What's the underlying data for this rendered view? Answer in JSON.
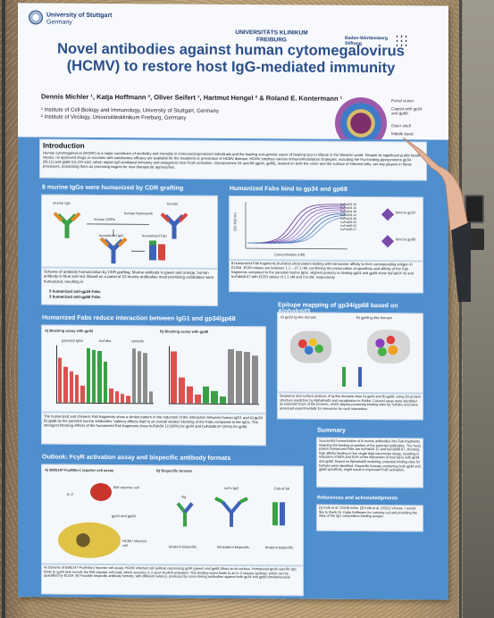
{
  "poster": {
    "logo_left": "University of Stuttgart",
    "logo_left_sub": "Germany",
    "logo_center": "UNIVERSITÄTS KLINIKUM FREIBURG",
    "logo_right": "Baden-Württemberg Stiftung",
    "title_line1": "Novel antibodies against human cytomegalovirus",
    "title_line2": "(HCMV) to restore host IgG-mediated immunity",
    "authors": "Dennis Michler ¹, Katja Hoffmann ², Oliver Seifert ¹, Hartmut Hengel ² & Roland E. Kontermann ¹",
    "affiliation1": "¹ Institute of Cell Biology and Immunology, University of Stuttgart, Germany",
    "affiliation2": "² Institute of Virology, Universitätsklinikum Freiburg, Germany",
    "virus_labels": [
      "Portal vertex",
      "Capsid with gp34 and gp68",
      "Outer shell",
      "Middle band",
      "Inner core"
    ],
    "intro_title": "Introduction",
    "intro_text": "Human cytomegalovirus (HCMV) is a major contributor of morbidity and mortality in immunocompromised individuals and the leading non-genetic cause of hearing loss in infants in the Western world. Despite its significant public health impact, no approved drugs or vaccines with satisfactory efficacy are available for the treatment or prevention of HCMV disease. HCMV employs various immunomodulatory strategies, including the Fcγ-binding glycoproteins gp34 (RL11) and gp68 (UL119-118), which impair IgG-mediated immunity and antagonize host FcγR activation. Glycoproteins 34 and 68 (gp34, gp68), located on both the virion and the surface of infected cells, are key players in these processes, positioning them as promising targets for new therapeutic approaches.",
    "s1_title": "8 murine IgGs were humanized by CDR grafting",
    "s1_labels": [
      "murine IgG",
      "murine CDRs",
      "human framework",
      "humanized IgG",
      "humanized Fab",
      "human"
    ],
    "s1_caption": "Scheme of antibody humanization by CDR grafting. Murine antibody in green and orange, human antibody in blue and red. Based on a panel of 23 murine antibodies most promising candidates were humanized, resulting in",
    "s1_bullet1": "5 humanized anti-gp34 Fabs",
    "s1_bullet2": "3 humanized anti-gp68 Fabs",
    "s2_title": "Humanized Fabs bind to gp34 and gp68",
    "s2_ylabel": "OD 450 nm",
    "s2_xlabel": "Concentration (nM)",
    "s2_legend": [
      "huFab34 09",
      "huFab34 26",
      "huFab34 30",
      "huFab34 42",
      "huFab34 80",
      "huFab68 20",
      "huFab68 55",
      "huFab68 67"
    ],
    "s2_bind1": "bind to gp34",
    "s2_bind2": "bind to gp68",
    "s2_caption": "8 humanized Fab fragments (huFabs) show potent binding with nanomolar affinity to their corresponding antigen in ELISA. EC50 values are between 1.1 – 27.1 nM, confirming the preservation of specificity and affinity of the Fab fragments compared to the parental murine IgGs. Highest potency in binding gp34 and gp68 show huFab34 42 and huFab68 67 with EC50 values of 1.1 nM and 2.8 nM, respectively.",
    "s3_title": "Humanized Fabs reduce interaction between IgG1 and gp34/gp68",
    "s3_a": "A) Blocking assay with gp34",
    "s3_b": "B) Blocking assay with gp68",
    "s3_groups": [
      "parental IgGs",
      "huFabs",
      "controls"
    ],
    "s3_caption": "The humanized and chimeric Fab fragments show a similar pattern in the reduction of the interaction between human IgG1 and A) gp34 B) gp68 as the parental murine antibodies. Valency effects lead to an overall weaker blocking of the Fabs compared to the IgGs. The strongest blocking effects of the humanized Fab fragments show huFab34 12 (80%) for gp34 and huFab68 67 (81%) for gp68.",
    "s4_title": "Epitope mapping of gp34/gp68 based on Alphafold3",
    "s4_a": "A) gp34 Ig-like domain",
    "s4_b": "B) gp68 Ig-like domain",
    "s4_caption": "Sequence and surface analysis of Ig-like domains from A) gp34 and B) gp68, using 3D protein structure prediction by AlphaFold3 and visualization in PyMol. Colored areas were identified as exposed loops of the proteins, which display promising binding sites for huFabs and were assessed experimentally for relevance for such interaction.",
    "s5_title": "Outlook: FcγR activation assay and bispecific antibody formats",
    "s5_a": "A) BW5147-FcγRIIIa-ζ reporter cell assay",
    "s5_b": "B) Bispecific formats",
    "s5_formats": [
      "sIg",
      "scFv-IgG",
      "Fab-sFab"
    ],
    "s5_format_sub": [
      "bivalent bispecific",
      "tetravalent bispecific",
      "bivalent bispecific"
    ],
    "s5_cell_labels": [
      "IL-2",
      "BW reporter cell",
      "gp34 and gp68",
      "HCMV infected cell"
    ],
    "s5_caption": "A) Scheme of BW5147-FcγRIIIa-ζ reporter cell assay. HCMV infected cell (yellow) expressing gp34 (green) and gp68 (blue) on its surface. Humanized gp34-specific IgG binds to gp34 and recruits the BW reporter cell (red), which secretes IL-2 upon FcγRIII activation. This binding event leads to an IL-2 release (yellow), which can be quantified by ELISA. B) Possible bispecific antibody formats, with different valency, produced by cross-linking antibodies against both gp34 and gp68 simultaneously.",
    "s6_title": "Summary",
    "s6_text": "Successful humanization of 8 murine antibodies into Fab fragments retaining the binding properties of the parental antibodies. The most potent humanized Fabs are huFab34 12 and huFab68 67, showing high affinity binding in the single-digit nanomolar range, resulting in reduction of 80% and 81% of the interaction of host IgGs with gp34 and gp68. Based on Alphafold3 modeling, potential binding sites for huFabs were identified. Bispecific formats combining both gp34 and gp68 specificity, might result in improved FcγR activation.",
    "s7_title": "References and acknowledgments",
    "s7_text": "[1] Kolb et al. (2019) mBio. [2] Kolb et al. (2021) Viruses. I would like to thank Dr. Katja Hoffmann for carrying out and providing the data of the IgG competition binding assays."
  },
  "colors": {
    "poster_blue": "#4f8fce",
    "title_blue": "#2b4f8a",
    "panel_bg": "#f4f7fb",
    "cork": "#b9a27c"
  },
  "chart_bars": {
    "gp34": [
      0.78,
      0.62,
      0.55,
      0.48,
      0.3,
      0.95,
      0.92,
      0.9,
      0.72,
      0.25,
      0.2,
      0.15,
      0.12,
      0.95,
      0.9,
      0.88,
      0.2
    ],
    "gp68": [
      0.9,
      0.45,
      0.3,
      0.15,
      0.3,
      0.22,
      0.12,
      0.95,
      0.92,
      0.9,
      0.85
    ]
  },
  "curves_count": 8
}
